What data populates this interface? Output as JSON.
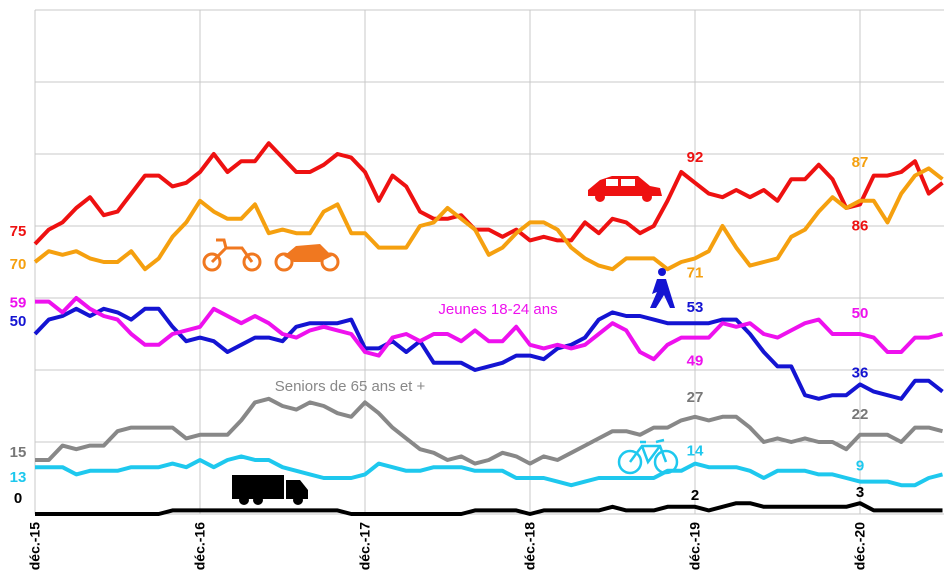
{
  "chart_data": {
    "type": "line",
    "categories": [
      "déc.-15",
      null,
      null,
      null,
      null,
      null,
      null,
      null,
      null,
      null,
      null,
      null,
      "déc.-16",
      null,
      null,
      null,
      null,
      null,
      null,
      null,
      null,
      null,
      null,
      null,
      "déc.-17",
      null,
      null,
      null,
      null,
      null,
      null,
      null,
      null,
      null,
      null,
      null,
      "déc.-18",
      null,
      null,
      null,
      null,
      null,
      null,
      null,
      null,
      null,
      null,
      null,
      "déc.-19",
      null,
      null,
      null,
      null,
      null,
      null,
      null,
      null,
      null,
      null,
      null,
      "déc.-20",
      null,
      null,
      null,
      null,
      null,
      null
    ],
    "series": [
      {
        "color": "#ee1111",
        "values": [
          75,
          79,
          81,
          85,
          88,
          83,
          84,
          89,
          94,
          94,
          91,
          92,
          95,
          100,
          95,
          98,
          98,
          103,
          99,
          95,
          95,
          97,
          100,
          99,
          95,
          87,
          94,
          91,
          84,
          82,
          82,
          83,
          79,
          79,
          77,
          79,
          76,
          77,
          76,
          76,
          81,
          78,
          82,
          81,
          78,
          80,
          87,
          95,
          92,
          89,
          88,
          90,
          88,
          90,
          87,
          93,
          93,
          97,
          93,
          85,
          86,
          94,
          94,
          95,
          98,
          89,
          92
        ]
      },
      {
        "color": "#f5a00f",
        "values": [
          70,
          73,
          72,
          73,
          71,
          70,
          70,
          73,
          68,
          71,
          77,
          81,
          87,
          84,
          82,
          82,
          86,
          78,
          79,
          78,
          78,
          84,
          86,
          78,
          78,
          74,
          74,
          74,
          80,
          81,
          85,
          82,
          79,
          72,
          74,
          78,
          81,
          81,
          79,
          74,
          71,
          69,
          68,
          71,
          71,
          71,
          68,
          70,
          71,
          73,
          80,
          74,
          69,
          70,
          71,
          77,
          79,
          84,
          88,
          85,
          87,
          87,
          81,
          89,
          94,
          96,
          93
        ]
      },
      {
        "color": "#1414d2",
        "values": [
          50,
          54,
          55,
          57,
          55,
          57,
          56,
          54,
          57,
          57,
          52,
          48,
          49,
          48,
          45,
          47,
          49,
          49,
          48,
          52,
          53,
          53,
          53,
          54,
          46,
          46,
          48,
          45,
          48,
          42,
          42,
          42,
          40,
          41,
          42,
          44,
          44,
          43,
          46,
          47,
          49,
          54,
          56,
          55,
          55,
          54,
          53,
          53,
          53,
          53,
          54,
          54,
          50,
          45,
          41,
          41,
          33,
          32,
          33,
          33,
          36,
          34,
          33,
          32,
          37,
          37,
          34
        ]
      },
      {
        "name": "Jeunes 18-24 ans",
        "color": "#ee11ee",
        "values": [
          59,
          59,
          56,
          60,
          57,
          55,
          54,
          50,
          47,
          47,
          50,
          51,
          52,
          57,
          55,
          53,
          55,
          53,
          50,
          49,
          51,
          52,
          51,
          50,
          45,
          44,
          49,
          50,
          48,
          50,
          50,
          48,
          51,
          48,
          48,
          52,
          47,
          46,
          47,
          46,
          47,
          50,
          53,
          51,
          45,
          43,
          47,
          49,
          49,
          49,
          53,
          52,
          53,
          50,
          49,
          51,
          53,
          54,
          50,
          50,
          50,
          49,
          45,
          45,
          49,
          49,
          50
        ]
      },
      {
        "name": "Seniors de 65 ans et +",
        "color": "#888888",
        "values": [
          15,
          15,
          19,
          18,
          19,
          19,
          23,
          24,
          24,
          24,
          24,
          21,
          22,
          22,
          22,
          26,
          31,
          32,
          30,
          29,
          31,
          30,
          28,
          27,
          31,
          28,
          24,
          21,
          18,
          17,
          15,
          16,
          14,
          15,
          17,
          16,
          14,
          16,
          15,
          17,
          19,
          21,
          23,
          23,
          22,
          24,
          24,
          26,
          27,
          26,
          27,
          27,
          24,
          20,
          21,
          20,
          21,
          20,
          20,
          18,
          22,
          22,
          22,
          20,
          24,
          24,
          23
        ]
      },
      {
        "color": "#1ec8ee",
        "values": [
          13,
          13,
          13,
          11,
          12,
          12,
          12,
          13,
          13,
          13,
          14,
          13,
          15,
          13,
          15,
          16,
          15,
          15,
          13,
          12,
          11,
          10,
          10,
          10,
          11,
          14,
          13,
          12,
          12,
          13,
          13,
          13,
          12,
          12,
          12,
          10,
          10,
          10,
          9,
          8,
          9,
          10,
          10,
          10,
          10,
          10,
          12,
          12,
          14,
          13,
          13,
          13,
          12,
          10,
          12,
          12,
          12,
          11,
          11,
          10,
          9,
          9,
          9,
          8,
          8,
          10,
          11
        ]
      },
      {
        "color": "#000000",
        "values": [
          0,
          0,
          0,
          0,
          0,
          0,
          0,
          0,
          0,
          0,
          1,
          1,
          1,
          1,
          1,
          1,
          1,
          1,
          1,
          1,
          1,
          1,
          1,
          0,
          0,
          0,
          0,
          0,
          0,
          0,
          0,
          0,
          1,
          1,
          1,
          1,
          0,
          1,
          1,
          1,
          1,
          1,
          2,
          1,
          1,
          1,
          2,
          2,
          2,
          1,
          2,
          3,
          3,
          2,
          2,
          2,
          2,
          2,
          2,
          2,
          3,
          1,
          1,
          1,
          1,
          1,
          1
        ]
      }
    ],
    "labeled_points": [
      0,
      48,
      60
    ],
    "ylim": [
      0,
      140
    ],
    "yticks": [
      0,
      20,
      40,
      60,
      80,
      100,
      120,
      140
    ],
    "grid": true
  }
}
